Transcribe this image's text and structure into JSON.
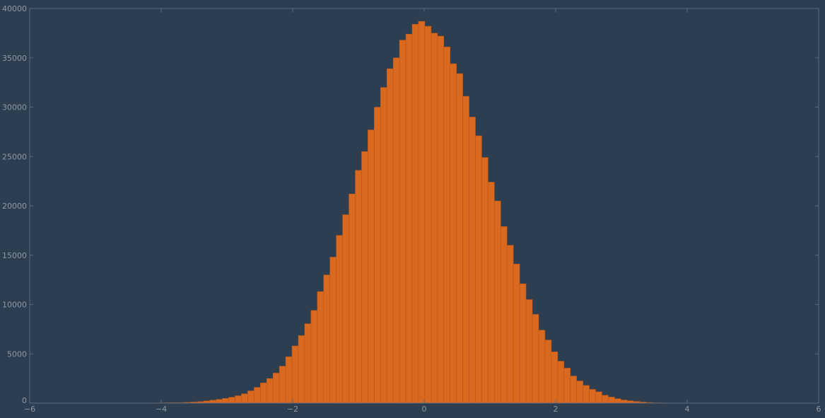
{
  "chart_data": {
    "type": "bar",
    "title": "",
    "xlabel": "",
    "ylabel": "",
    "xlim": [
      -6,
      6
    ],
    "ylim": [
      0,
      40000
    ],
    "x_ticks": [
      "-6",
      "-4",
      "-2",
      "0",
      "2",
      "4",
      "6"
    ],
    "y_ticks": [
      "0",
      "5000",
      "10000",
      "15000",
      "20000",
      "25000",
      "30000",
      "35000",
      "40000"
    ],
    "x_tick_values": [
      -6,
      -4,
      -2,
      0,
      2,
      4,
      6
    ],
    "y_tick_values": [
      0,
      5000,
      10000,
      15000,
      20000,
      25000,
      30000,
      35000,
      40000
    ],
    "bar_color": "#d9691f",
    "background": "#2c3e50",
    "bins": {
      "start": -4.8,
      "width": 0.0962,
      "counts": [
        5,
        2,
        3,
        6,
        8,
        10,
        15,
        20,
        30,
        40,
        45,
        60,
        80,
        110,
        150,
        220,
        300,
        380,
        480,
        600,
        750,
        950,
        1250,
        1600,
        2050,
        2500,
        3050,
        3750,
        4700,
        5800,
        6850,
        8050,
        9400,
        11300,
        13000,
        14800,
        17000,
        19100,
        21200,
        23600,
        25500,
        27700,
        30000,
        32000,
        33900,
        35000,
        36800,
        37400,
        38400,
        38700,
        38200,
        37500,
        37200,
        36100,
        34400,
        33400,
        31100,
        29000,
        27100,
        24900,
        22400,
        20500,
        17900,
        16000,
        14100,
        12100,
        10500,
        9000,
        7400,
        6400,
        5200,
        4250,
        3550,
        2750,
        2250,
        1800,
        1400,
        1150,
        800,
        620,
        450,
        320,
        240,
        170,
        110,
        70,
        40,
        25,
        15,
        10
      ]
    }
  }
}
